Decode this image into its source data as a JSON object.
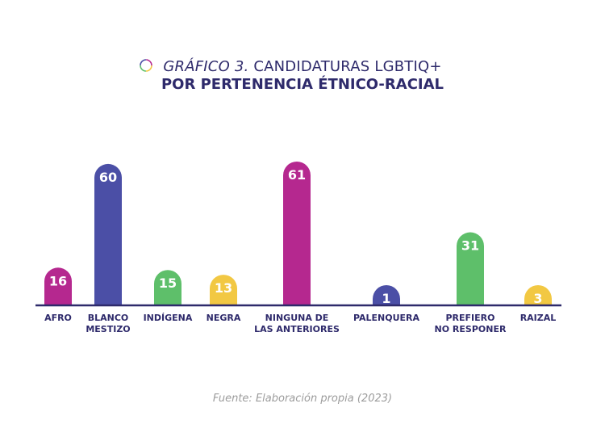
{
  "header": {
    "title_lead": "GRÁFICO 3.",
    "title_rest": " CANDIDATURAS LGBTIQ+",
    "title_line2": "POR PERTENENCIA ÉTNICO-RACIAL"
  },
  "footer": {
    "source": "Fuente: Elaboración propia (2023)"
  },
  "colors": {
    "text": "#2e2a6b",
    "axis": "#2e2a6b",
    "magenta": "#b5288f",
    "indigo": "#4b4fa6",
    "green": "#5ebf6a",
    "yellow": "#f2c843",
    "source": "#9c9c9c"
  },
  "chart_data": {
    "type": "bar",
    "title": "GRÁFICO 3. CANDIDATURAS LGBTIQ+ POR PERTENENCIA ÉTNICO-RACIAL",
    "categories": [
      [
        "AFRO"
      ],
      [
        "BLANCO",
        "MESTIZO"
      ],
      [
        "INDÍGENA"
      ],
      [
        "NEGRA"
      ],
      [
        "NINGUNA DE",
        "LAS ANTERIORES"
      ],
      [
        "PALENQUERA"
      ],
      [
        "PREFIERO",
        "NO RESPONER"
      ],
      [
        "RAIZAL"
      ]
    ],
    "values": [
      16,
      60,
      15,
      13,
      61,
      1,
      31,
      3
    ],
    "bar_colors": [
      "#b5288f",
      "#4b4fa6",
      "#5ebf6a",
      "#f2c843",
      "#b5288f",
      "#4b4fa6",
      "#5ebf6a",
      "#f2c843"
    ],
    "xlabel": "",
    "ylabel": "",
    "grid": false,
    "data_labels": true
  }
}
